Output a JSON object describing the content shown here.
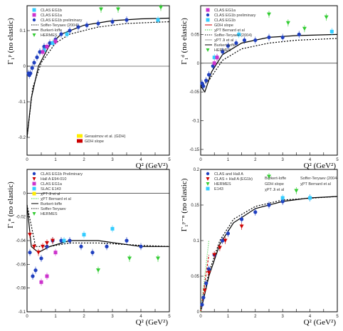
{
  "chart_data": [
    {
      "type": "scatter",
      "panel": "proton",
      "ylabel": "Γ₁ᵖ (no elastic)",
      "xlabel": "Q² (GeV²)",
      "xlim": [
        0,
        5
      ],
      "ylim": [
        -0.25,
        0.17
      ],
      "xticks": [
        "0",
        "0.5",
        "1",
        "1.5",
        "2",
        "2.5",
        "3",
        "3.5",
        "4",
        "4.5",
        "5"
      ],
      "yticks": [
        "-0.2",
        "-0.1",
        "0",
        "0.1"
      ],
      "legend_position": "top-left",
      "legend": [
        {
          "label": "CLAS EG1b",
          "color": "#33ccff",
          "marker": "square"
        },
        {
          "label": "CLAS EG1a",
          "color": "#cc33cc",
          "marker": "square"
        },
        {
          "label": "CLAS EG1b preliminary",
          "color": "#1f3fbf",
          "marker": "circle"
        },
        {
          "label": "Soffer-Teryaev (2004)",
          "color": "#000000",
          "marker": "dotted"
        },
        {
          "label": "Burkert-Ioffe",
          "color": "#000000",
          "marker": "line"
        },
        {
          "label": "HERMES",
          "color": "#33cc33",
          "marker": "triangle"
        }
      ],
      "inset_legend": [
        {
          "label": "Gerasimov et al. (GDH)",
          "color": "#ffee00"
        },
        {
          "label": "GDH slope",
          "color": "#cc0000"
        }
      ],
      "series": [
        {
          "name": "CLAS EG1b preliminary",
          "color": "#1f3fbf",
          "marker": "circle",
          "points": [
            [
              0.05,
              -0.02
            ],
            [
              0.08,
              -0.025
            ],
            [
              0.12,
              -0.02
            ],
            [
              0.18,
              -0.005
            ],
            [
              0.25,
              0.01
            ],
            [
              0.35,
              0.025
            ],
            [
              0.45,
              0.04
            ],
            [
              0.6,
              0.055
            ],
            [
              0.8,
              0.065
            ],
            [
              1.0,
              0.075
            ],
            [
              1.2,
              0.09
            ],
            [
              1.5,
              0.1
            ],
            [
              1.8,
              0.11
            ],
            [
              2.1,
              0.115
            ],
            [
              2.5,
              0.12
            ],
            [
              3.0,
              0.125
            ],
            [
              3.5,
              0.13
            ]
          ]
        },
        {
          "name": "CLAS EG1b",
          "color": "#33ccff",
          "marker": "square",
          "points": [
            [
              0.6,
              0.045
            ],
            [
              0.9,
              0.065
            ],
            [
              1.4,
              0.09
            ],
            [
              4.6,
              0.13
            ]
          ]
        },
        {
          "name": "CLAS EG1a",
          "color": "#cc33cc",
          "marker": "square",
          "points": [
            [
              0.55,
              0.04
            ],
            [
              0.7,
              0.055
            ],
            [
              1.0,
              0.07
            ]
          ]
        },
        {
          "name": "HERMES",
          "color": "#33cc33",
          "marker": "triangle",
          "points": [
            [
              2.6,
              0.16
            ],
            [
              3.2,
              0.16
            ],
            [
              4.7,
              0.165
            ]
          ]
        }
      ],
      "curves": {
        "Burkert-Ioffe": [
          [
            0,
            -0.2
          ],
          [
            0.15,
            -0.09
          ],
          [
            0.4,
            0.0
          ],
          [
            0.8,
            0.06
          ],
          [
            1.2,
            0.09
          ],
          [
            2,
            0.115
          ],
          [
            3,
            0.128
          ],
          [
            4,
            0.133
          ],
          [
            5,
            0.135
          ]
        ],
        "Soffer-Teryaev (2004)": [
          [
            0,
            -0.2
          ],
          [
            0.2,
            -0.06
          ],
          [
            0.5,
            0.01
          ],
          [
            1,
            0.065
          ],
          [
            1.5,
            0.09
          ],
          [
            2.5,
            0.11
          ],
          [
            3.5,
            0.12
          ],
          [
            5,
            0.125
          ]
        ]
      }
    },
    {
      "type": "scatter",
      "panel": "deuteron",
      "ylabel": "Γ₁ᵈ (no elastic)",
      "xlabel": "Q² (GeV²)",
      "xlim": [
        0,
        5
      ],
      "ylim": [
        -0.16,
        0.1
      ],
      "xticks": [
        "0",
        "0.5",
        "1",
        "1.5",
        "2",
        "2.5",
        "3",
        "3.5",
        "4",
        "4.5",
        "5"
      ],
      "yticks": [
        "-0.15",
        "-0.1",
        "-0.05",
        "0",
        "0.05"
      ],
      "legend_position": "top-left",
      "legend": [
        {
          "label": "CLAS EG1a",
          "color": "#cc33cc",
          "marker": "square"
        },
        {
          "label": "CLAS EG1b preliminary",
          "color": "#1f3fbf",
          "marker": "circle"
        },
        {
          "label": "CLAS EG1b",
          "color": "#33ccff",
          "marker": "square"
        },
        {
          "label": "GDH slope",
          "color": "#cc0000",
          "marker": "line"
        },
        {
          "label": "χPT Bernard et al",
          "color": "#33cc33",
          "marker": "dotted"
        },
        {
          "label": "Soffer-Teryaev (2004)",
          "color": "#000000",
          "marker": "dotted"
        },
        {
          "label": "χPT Ji et al",
          "color": "#999999",
          "marker": "line"
        },
        {
          "label": "Burkert-Ioffe",
          "color": "#000000",
          "marker": "line"
        },
        {
          "label": "HERMES",
          "color": "#33cc33",
          "marker": "triangle"
        }
      ],
      "series": [
        {
          "name": "CLAS EG1b preliminary",
          "color": "#1f3fbf",
          "marker": "circle",
          "points": [
            [
              0.05,
              -0.035
            ],
            [
              0.1,
              -0.04
            ],
            [
              0.2,
              -0.03
            ],
            [
              0.3,
              -0.02
            ],
            [
              0.45,
              -0.005
            ],
            [
              0.6,
              0.01
            ],
            [
              0.8,
              0.02
            ],
            [
              1.0,
              0.03
            ],
            [
              1.3,
              0.035
            ],
            [
              1.6,
              0.04
            ],
            [
              2.0,
              0.04
            ],
            [
              2.5,
              0.045
            ],
            [
              3.0,
              0.045
            ],
            [
              3.6,
              0.05
            ]
          ]
        },
        {
          "name": "CLAS EG1b",
          "color": "#33ccff",
          "marker": "square",
          "points": [
            [
              0.5,
              0.01
            ],
            [
              1.4,
              0.05
            ],
            [
              4.8,
              0.055
            ]
          ]
        },
        {
          "name": "CLAS EG1a",
          "color": "#cc33cc",
          "marker": "square",
          "points": [
            [
              0.5,
              0.0
            ],
            [
              0.6,
              0.01
            ]
          ]
        },
        {
          "name": "HERMES",
          "color": "#33cc33",
          "marker": "triangle",
          "points": [
            [
              2.5,
              0.085
            ],
            [
              3.2,
              0.07
            ],
            [
              3.8,
              0.06
            ],
            [
              4.6,
              0.08
            ]
          ]
        }
      ],
      "curves": {
        "Burkert-Ioffe": [
          [
            0,
            -0.04
          ],
          [
            0.15,
            -0.05
          ],
          [
            0.4,
            -0.015
          ],
          [
            0.8,
            0.015
          ],
          [
            1.5,
            0.035
          ],
          [
            2.5,
            0.045
          ],
          [
            3.5,
            0.048
          ],
          [
            5,
            0.05
          ]
        ],
        "Soffer-Teryaev (2004)": [
          [
            0,
            -0.04
          ],
          [
            0.3,
            -0.03
          ],
          [
            0.8,
            0.005
          ],
          [
            1.5,
            0.025
          ],
          [
            2.5,
            0.035
          ],
          [
            3.5,
            0.04
          ],
          [
            5,
            0.043
          ]
        ]
      }
    },
    {
      "type": "scatter",
      "panel": "neutron",
      "ylabel": "Γ₁ⁿ (no elastic)",
      "xlabel": "Q² (GeV²)",
      "xlim": [
        0,
        5
      ],
      "ylim": [
        -0.1,
        0.02
      ],
      "xticks": [
        "0",
        "0.5",
        "1",
        "1.5",
        "2",
        "2.5",
        "3",
        "3.5",
        "4",
        "4.5",
        "5"
      ],
      "yticks": [
        "-0.1",
        "-0.08",
        "-0.06",
        "-0.04",
        "-0.02",
        "0"
      ],
      "legend_position": "top-left",
      "legend": [
        {
          "label": "CLAS EG1b Preliminary",
          "color": "#1f3fbf",
          "marker": "circle"
        },
        {
          "label": "Hall A E94-010",
          "color": "#cc0000",
          "marker": "triangle"
        },
        {
          "label": "CLAS EG1a",
          "color": "#cc33cc",
          "marker": "square"
        },
        {
          "label": "SLAC E143",
          "color": "#33ccff",
          "marker": "square"
        },
        {
          "label": "χPT Ji et al",
          "color": "#ffee00",
          "marker": "square"
        },
        {
          "label": "χPT Bernard et al",
          "color": "#33cc33",
          "marker": "dotted"
        },
        {
          "label": "Burkert-Ioffe",
          "color": "#000000",
          "marker": "line"
        },
        {
          "label": "Soffer-Teryaev",
          "color": "#000000",
          "marker": "dotted"
        },
        {
          "label": "HERMES",
          "color": "#33cc33",
          "marker": "triangle"
        }
      ],
      "series": [
        {
          "name": "CLAS EG1b Preliminary",
          "color": "#1f3fbf",
          "marker": "circle",
          "points": [
            [
              0.1,
              -0.05
            ],
            [
              0.2,
              -0.07
            ],
            [
              0.3,
              -0.065
            ],
            [
              0.5,
              -0.055
            ],
            [
              0.7,
              -0.045
            ],
            [
              0.9,
              -0.04
            ],
            [
              1.2,
              -0.04
            ],
            [
              1.5,
              -0.04
            ],
            [
              1.9,
              -0.045
            ],
            [
              2.3,
              -0.05
            ],
            [
              2.8,
              -0.045
            ],
            [
              3.5,
              -0.04
            ],
            [
              4.0,
              -0.045
            ]
          ]
        },
        {
          "name": "Hall A E94-010",
          "color": "#cc0000",
          "marker": "triangle",
          "points": [
            [
              0.1,
              -0.035
            ],
            [
              0.25,
              -0.045
            ],
            [
              0.4,
              -0.05
            ],
            [
              0.55,
              -0.045
            ],
            [
              0.7,
              -0.042
            ],
            [
              0.9,
              -0.04
            ]
          ]
        },
        {
          "name": "CLAS EG1a",
          "color": "#cc33cc",
          "marker": "square",
          "points": [
            [
              0.5,
              -0.075
            ],
            [
              0.7,
              -0.07
            ],
            [
              1.0,
              -0.05
            ]
          ]
        },
        {
          "name": "SLAC E143",
          "color": "#33ccff",
          "marker": "square",
          "points": [
            [
              1.3,
              -0.04
            ],
            [
              2.0,
              -0.035
            ],
            [
              3.0,
              -0.03
            ]
          ]
        },
        {
          "name": "HERMES",
          "color": "#33cc33",
          "marker": "triangle",
          "points": [
            [
              2.5,
              -0.065
            ],
            [
              3.6,
              -0.055
            ],
            [
              4.6,
              -0.055
            ]
          ]
        }
      ],
      "curves": {
        "Burkert-Ioffe": [
          [
            0,
            -0.01
          ],
          [
            0.15,
            -0.045
          ],
          [
            0.4,
            -0.05
          ],
          [
            0.8,
            -0.045
          ],
          [
            1.5,
            -0.04
          ],
          [
            2.5,
            -0.04
          ],
          [
            4,
            -0.045
          ],
          [
            5,
            -0.045
          ]
        ],
        "Soffer-Teryaev": [
          [
            0,
            -0.01
          ],
          [
            0.3,
            -0.045
          ],
          [
            0.8,
            -0.045
          ],
          [
            1.5,
            -0.042
          ],
          [
            2.5,
            -0.042
          ],
          [
            4,
            -0.044
          ],
          [
            5,
            -0.045
          ]
        ]
      }
    },
    {
      "type": "scatter",
      "panel": "proton-minus-neutron",
      "ylabel": "Γ₁ᵖ⁻ⁿ (no elastic)",
      "xlabel": "Q² (GeV²)",
      "xlim": [
        0,
        5
      ],
      "ylim": [
        0,
        0.2
      ],
      "xticks": [
        "0",
        "0.5",
        "1",
        "1.5",
        "2",
        "2.5",
        "3",
        "3.5",
        "4",
        "4.5",
        "5"
      ],
      "yticks": [
        "0",
        "0.05",
        "0.1",
        "0.15",
        "0.2"
      ],
      "legend_position": "top-left",
      "legend": [
        {
          "label": "CLAS and Hall A",
          "color": "#1f3fbf",
          "marker": "circle"
        },
        {
          "label": "CLAS + Hall A (EG1b)",
          "color": "#cc0000",
          "marker": "triangle"
        },
        {
          "label": "HERMES",
          "color": "#33cc33",
          "marker": "triangle"
        },
        {
          "label": "E143",
          "color": "#33ccff",
          "marker": "square"
        }
      ],
      "annotations": [
        "Burkert-Ioffe",
        "Soffer-Teryaev (2004)",
        "GDH slope",
        "χPT Bernard et al",
        "χPT Ji et al"
      ],
      "series": [
        {
          "name": "CLAS and Hall A",
          "color": "#1f3fbf",
          "marker": "circle",
          "points": [
            [
              0.05,
              0.01
            ],
            [
              0.1,
              0.02
            ],
            [
              0.2,
              0.04
            ],
            [
              0.3,
              0.06
            ],
            [
              0.5,
              0.08
            ],
            [
              0.8,
              0.1
            ],
            [
              1.0,
              0.11
            ],
            [
              1.5,
              0.13
            ],
            [
              2.0,
              0.14
            ],
            [
              2.5,
              0.15
            ],
            [
              3.0,
              0.155
            ],
            [
              4.0,
              0.16
            ]
          ]
        },
        {
          "name": "CLAS + Hall A (EG1b)",
          "color": "#cc0000",
          "marker": "triangle",
          "points": [
            [
              0.15,
              0.03
            ],
            [
              0.3,
              0.055
            ],
            [
              0.5,
              0.08
            ],
            [
              0.7,
              0.09
            ],
            [
              0.9,
              0.1
            ],
            [
              1.5,
              0.12
            ]
          ]
        },
        {
          "name": "HERMES",
          "color": "#33cc33",
          "marker": "triangle",
          "points": [
            [
              2.5,
              0.19
            ],
            [
              3.5,
              0.17
            ]
          ]
        },
        {
          "name": "E143",
          "color": "#33ccff",
          "marker": "square",
          "points": [
            [
              3.0,
              0.16
            ],
            [
              4.0,
              0.16
            ]
          ]
        }
      ],
      "curves": {
        "Burkert-Ioffe": [
          [
            0,
            0
          ],
          [
            0.3,
            0.05
          ],
          [
            0.7,
            0.095
          ],
          [
            1.2,
            0.125
          ],
          [
            2,
            0.145
          ],
          [
            3,
            0.155
          ],
          [
            4,
            0.16
          ],
          [
            5,
            0.162
          ]
        ],
        "Soffer-Teryaev (2004)": [
          [
            0,
            0
          ],
          [
            0.3,
            0.055
          ],
          [
            0.7,
            0.1
          ],
          [
            1.2,
            0.13
          ],
          [
            2,
            0.148
          ],
          [
            3,
            0.157
          ],
          [
            5,
            0.162
          ]
        ],
        "GDH slope": [
          [
            0,
            0
          ],
          [
            0.3,
            0.08
          ]
        ],
        "χPT Bernard et al": [
          [
            0,
            0
          ],
          [
            0.3,
            0.1
          ]
        ]
      }
    }
  ]
}
